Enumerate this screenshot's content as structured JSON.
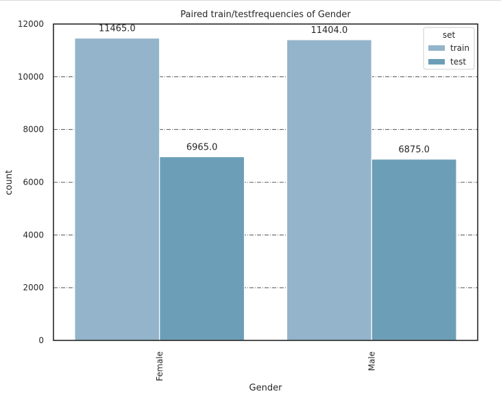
{
  "chart_data": {
    "type": "bar",
    "title": "Paired train/testfrequencies of Gender",
    "xlabel": "Gender",
    "ylabel": "count",
    "categories": [
      "Female",
      "Male"
    ],
    "series": [
      {
        "name": "train",
        "values": [
          11465.0,
          11404.0
        ],
        "color": "#93b4ca"
      },
      {
        "name": "test",
        "values": [
          6965.0,
          6875.0
        ],
        "color": "#6c9fb7"
      }
    ],
    "data_labels": {
      "train": [
        "11465.0",
        "11404.0"
      ],
      "test": [
        "6965.0",
        "6875.0"
      ]
    },
    "ylim": [
      0,
      12000
    ],
    "yticks": [
      0,
      2000,
      4000,
      6000,
      8000,
      10000,
      12000
    ],
    "grid": "horizontal dash-dot",
    "legend": {
      "title": "set",
      "placement": "top-right"
    }
  }
}
